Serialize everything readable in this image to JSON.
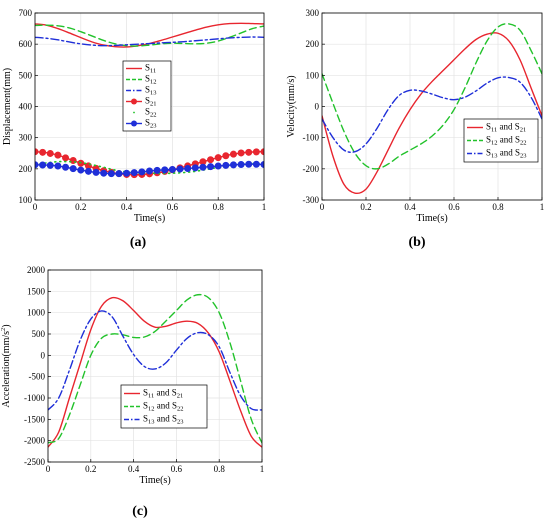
{
  "chart_data": [
    {
      "type": "line",
      "panel_label": "(a)",
      "xlabel": "Time(s)",
      "ylabel": "Displacement(mm)",
      "xlim": [
        0,
        1
      ],
      "ylim": [
        100,
        700
      ],
      "xticks": [
        "0",
        "0.2",
        "0.4",
        "0.6",
        "0.8",
        "1"
      ],
      "yticks": [
        "100",
        "200",
        "300",
        "400",
        "500",
        "600",
        "700"
      ],
      "grid": true,
      "legend_position": "center",
      "x": [
        0,
        0.05,
        0.1,
        0.15,
        0.2,
        0.25,
        0.3,
        0.35,
        0.4,
        0.45,
        0.5,
        0.55,
        0.6,
        0.65,
        0.7,
        0.75,
        0.8,
        0.85,
        0.9,
        0.95,
        1
      ],
      "series": [
        {
          "name": "S",
          "sub": "11",
          "color": "#e8262f",
          "dash": "",
          "marker": "",
          "values": [
            665,
            661,
            650,
            636,
            621,
            607,
            597,
            592,
            591,
            595,
            602,
            612,
            623,
            634,
            645,
            655,
            662,
            666,
            667,
            666,
            665
          ]
        },
        {
          "name": "S",
          "sub": "12",
          "color": "#22c22b",
          "dash": "7 4",
          "marker": "",
          "values": [
            660,
            661,
            659,
            652,
            640,
            626,
            612,
            601,
            595,
            594,
            597,
            601,
            603,
            602,
            601,
            603,
            610,
            622,
            636,
            650,
            658
          ]
        },
        {
          "name": "S",
          "sub": "13",
          "color": "#1f2fd8",
          "dash": "8 3 2 3",
          "marker": "",
          "values": [
            622,
            619,
            614,
            607,
            601,
            597,
            595,
            596,
            598,
            600,
            602,
            604,
            606,
            608,
            611,
            614,
            617,
            620,
            622,
            623,
            622
          ]
        },
        {
          "name": "S",
          "sub": "21",
          "color": "#e8262f",
          "dash": "",
          "marker": "filled",
          "values": [
            255,
            252,
            244,
            231,
            218,
            205,
            194,
            186,
            182,
            181,
            184,
            189,
            197,
            206,
            216,
            226,
            236,
            245,
            251,
            254,
            255
          ]
        },
        {
          "name": "S",
          "sub": "22",
          "color": "#22c22b",
          "dash": "1 4",
          "marker": "",
          "values": [
            213,
            219,
            223,
            223,
            220,
            213,
            205,
            196,
            190,
            187,
            186,
            185,
            186,
            188,
            192,
            198,
            205,
            211,
            215,
            217,
            217
          ]
        },
        {
          "name": "S",
          "sub": "23",
          "color": "#1f2fd8",
          "dash": "",
          "marker": "filled",
          "values": [
            213,
            212,
            209,
            203,
            196,
            190,
            186,
            184,
            186,
            189,
            193,
            196,
            198,
            200,
            203,
            206,
            209,
            212,
            214,
            215,
            214
          ]
        }
      ]
    },
    {
      "type": "line",
      "panel_label": "(b)",
      "xlabel": "Time(s)",
      "ylabel": "Velocity(mm/s)",
      "xlim": [
        0,
        1
      ],
      "ylim": [
        -300,
        300
      ],
      "xticks": [
        "0",
        "0.2",
        "0.4",
        "0.6",
        "0.8",
        "1"
      ],
      "yticks": [
        "-300",
        "-200",
        "-100",
        "0",
        "100",
        "200",
        "300"
      ],
      "grid": true,
      "legend_position": "bottom-right",
      "x": [
        0,
        0.05,
        0.1,
        0.15,
        0.2,
        0.25,
        0.3,
        0.35,
        0.4,
        0.45,
        0.5,
        0.55,
        0.6,
        0.65,
        0.7,
        0.75,
        0.8,
        0.85,
        0.9,
        0.95,
        1
      ],
      "series": [
        {
          "name": "S",
          "sub": "11",
          "name2": " and S",
          "sub2": "21",
          "color": "#e8262f",
          "dash": "",
          "values": [
            -30,
            -160,
            -250,
            -278,
            -265,
            -210,
            -140,
            -70,
            -10,
            40,
            80,
            115,
            150,
            185,
            215,
            232,
            235,
            210,
            150,
            60,
            -30
          ]
        },
        {
          "name": "S",
          "sub": "12",
          "name2": " and S",
          "sub2": "22",
          "color": "#22c22b",
          "dash": "7 4",
          "values": [
            105,
            10,
            -80,
            -150,
            -190,
            -200,
            -185,
            -160,
            -140,
            -120,
            -95,
            -60,
            -10,
            60,
            140,
            210,
            255,
            265,
            245,
            180,
            105
          ]
        },
        {
          "name": "S",
          "sub": "13",
          "name2": " and S",
          "sub2": "23",
          "color": "#1f2fd8",
          "dash": "8 3 2 3",
          "values": [
            -40,
            -100,
            -140,
            -145,
            -120,
            -70,
            -10,
            35,
            52,
            50,
            40,
            28,
            22,
            30,
            50,
            75,
            92,
            93,
            78,
            30,
            -40
          ]
        }
      ]
    },
    {
      "type": "line",
      "panel_label": "(c)",
      "xlabel": "Time(s)",
      "ylabel": "Acceleration(mm/s",
      "ylabel_sup": "2",
      "ylabel_end": ")",
      "xlim": [
        0,
        1
      ],
      "ylim": [
        -2500,
        2000
      ],
      "xticks": [
        "0",
        "0.2",
        "0.4",
        "0.6",
        "0.8",
        "1"
      ],
      "yticks": [
        "-2500",
        "-2000",
        "-1500",
        "-1000",
        "-500",
        "0",
        "500",
        "1000",
        "1500",
        "2000"
      ],
      "grid": true,
      "legend_position": "bottom-center",
      "x": [
        0,
        0.05,
        0.1,
        0.15,
        0.2,
        0.25,
        0.3,
        0.35,
        0.4,
        0.45,
        0.5,
        0.55,
        0.6,
        0.65,
        0.7,
        0.75,
        0.8,
        0.85,
        0.9,
        0.95,
        1
      ],
      "series": [
        {
          "name": "S",
          "sub": "11",
          "name2": " and S",
          "sub2": "21",
          "color": "#e8262f",
          "dash": "",
          "values": [
            -2150,
            -1800,
            -1000,
            -200,
            600,
            1150,
            1350,
            1280,
            1050,
            800,
            660,
            680,
            760,
            800,
            750,
            520,
            80,
            -600,
            -1300,
            -1900,
            -2150
          ]
        },
        {
          "name": "S",
          "sub": "12",
          "name2": " and S",
          "sub2": "22",
          "color": "#22c22b",
          "dash": "7 4",
          "values": [
            -2050,
            -1950,
            -1400,
            -700,
            0,
            400,
            500,
            480,
            420,
            430,
            560,
            800,
            1050,
            1300,
            1420,
            1350,
            1000,
            300,
            -600,
            -1500,
            -2050
          ]
        },
        {
          "name": "S",
          "sub": "13",
          "name2": " and S",
          "sub2": "23",
          "color": "#1f2fd8",
          "dash": "8 3 2 3",
          "values": [
            -1280,
            -1000,
            -350,
            350,
            850,
            1040,
            900,
            450,
            20,
            -260,
            -320,
            -180,
            120,
            400,
            530,
            480,
            200,
            -400,
            -950,
            -1250,
            -1280
          ]
        }
      ]
    }
  ]
}
